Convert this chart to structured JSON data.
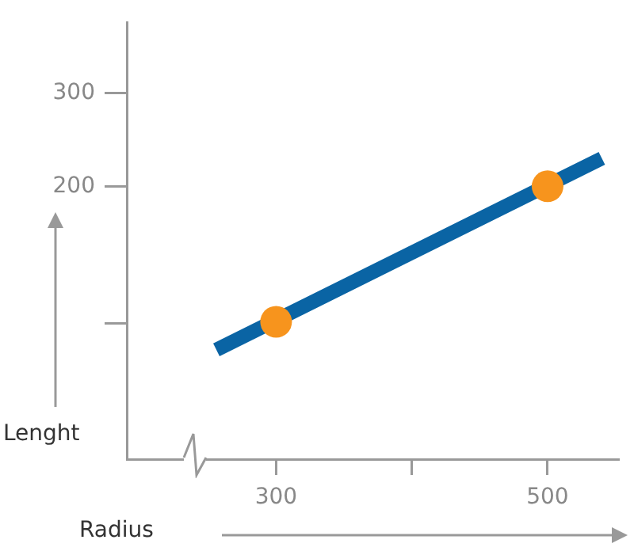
{
  "chart_data": {
    "type": "line",
    "xlabel": "Radius",
    "ylabel": "Lenght",
    "xlim": [
      190,
      552
    ],
    "xticks": [
      300,
      {
        "value": 400,
        "label": null
      },
      500
    ],
    "ylim": [
      -92,
      375
    ],
    "yticks": [
      {
        "value": 53,
        "label": null
      },
      200,
      300
    ],
    "grid": false,
    "legend": false,
    "series": [
      {
        "color": "#0a64a4",
        "x": [
          256,
          540
        ],
        "values": [
          25,
          230
        ],
        "marker": "none"
      },
      {
        "type": "scatter",
        "color": "#f7941d",
        "x": [
          300,
          500
        ],
        "values": [
          55,
          200
        ],
        "marker": "circle"
      }
    ]
  }
}
